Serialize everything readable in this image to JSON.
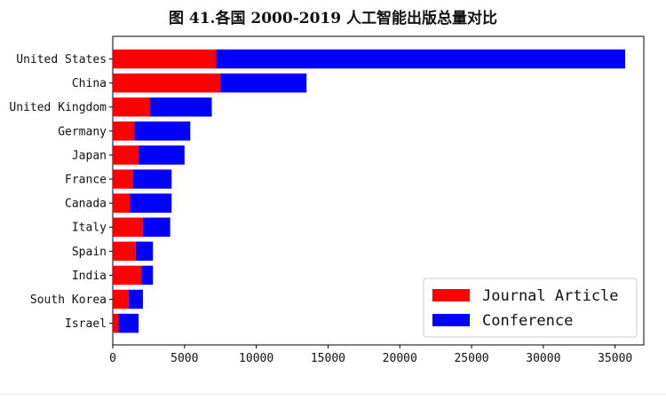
{
  "chart_data": {
    "type": "bar",
    "orientation": "horizontal",
    "stacked": true,
    "title": "图 41.各国 2000-2019 人工智能出版总量对比",
    "categories": [
      "United States",
      "China",
      "United Kingdom",
      "Germany",
      "Japan",
      "France",
      "Canada",
      "Italy",
      "Spain",
      "India",
      "South Korea",
      "Israel"
    ],
    "series": [
      {
        "name": "Journal Article",
        "color": "#ff0000",
        "values": [
          7200,
          7500,
          2600,
          1500,
          1800,
          1400,
          1200,
          2100,
          1600,
          2000,
          1100,
          400
        ]
      },
      {
        "name": "Conference",
        "color": "#0000ff",
        "values": [
          28500,
          6000,
          4300,
          3900,
          3200,
          2700,
          2900,
          1900,
          1200,
          800,
          1000,
          1400
        ]
      }
    ],
    "xlim": [
      0,
      37000
    ],
    "xticks": [
      0,
      5000,
      10000,
      15000,
      20000,
      25000,
      30000,
      35000
    ],
    "grid": false,
    "legend_position": "lower-right"
  }
}
